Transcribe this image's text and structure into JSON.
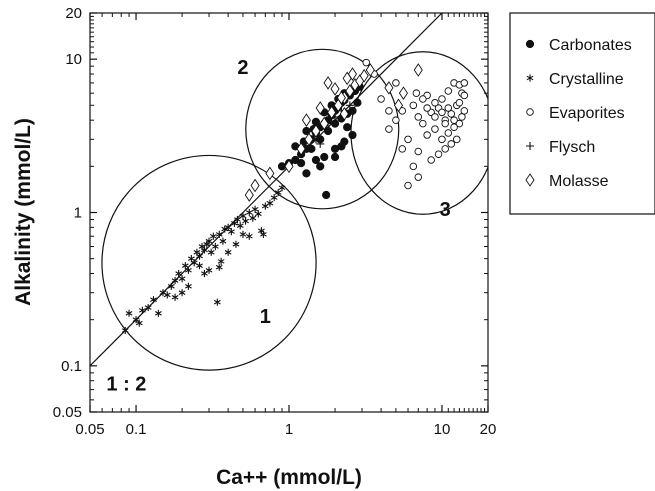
{
  "chart_data": {
    "type": "scatter",
    "title": "",
    "xlabel": "Ca++ (mmol/L)",
    "ylabel": "Alkalinity (mmol/L)",
    "xscale": "log",
    "yscale": "log",
    "xlim": [
      0.05,
      20
    ],
    "ylim": [
      0.05,
      20
    ],
    "x_ticks": [
      0.05,
      0.1,
      1,
      10,
      20
    ],
    "x_tick_labels": [
      "0.05",
      "0.1",
      "1",
      "10",
      "20"
    ],
    "y_ticks": [
      0.05,
      0.1,
      1,
      10,
      20
    ],
    "y_tick_labels": [
      "0.05",
      "0.1",
      "1",
      "10",
      "20"
    ],
    "grid": false,
    "legend_position": "outside-right",
    "line_label": "1 : 2",
    "reference_line": {
      "slope": 2,
      "label": "1 : 2"
    },
    "groups": [
      {
        "label": "1",
        "center": [
          0.3,
          0.47
        ],
        "rx_decades": 0.7,
        "ry_decades": 0.7
      },
      {
        "label": "2",
        "center": [
          1.65,
          3.5
        ],
        "rx_decades": 0.5,
        "ry_decades": 0.52
      },
      {
        "label": "3",
        "center": [
          7.5,
          3.3
        ],
        "rx_decades": 0.47,
        "ry_decades": 0.53
      }
    ],
    "group_label_positions": [
      [
        0.7,
        0.19
      ],
      [
        0.5,
        8.0
      ],
      [
        10.5,
        0.95
      ]
    ],
    "series": [
      {
        "name": "Carbonates",
        "marker": "filled-circle",
        "points": [
          [
            0.9,
            2.0
          ],
          [
            1.0,
            2.1
          ],
          [
            1.1,
            2.2
          ],
          [
            1.2,
            2.4
          ],
          [
            1.3,
            2.6
          ],
          [
            1.4,
            3.0
          ],
          [
            1.5,
            3.3
          ],
          [
            1.6,
            3.6
          ],
          [
            1.7,
            3.8
          ],
          [
            1.8,
            4.0
          ],
          [
            1.9,
            4.3
          ],
          [
            2.0,
            4.6
          ],
          [
            2.1,
            4.9
          ],
          [
            2.2,
            5.2
          ],
          [
            2.3,
            5.4
          ],
          [
            2.5,
            5.8
          ],
          [
            2.7,
            6.2
          ],
          [
            2.9,
            6.6
          ],
          [
            1.2,
            2.1
          ],
          [
            1.4,
            2.6
          ],
          [
            1.6,
            3.0
          ],
          [
            1.8,
            3.4
          ],
          [
            2.0,
            3.8
          ],
          [
            2.2,
            4.1
          ],
          [
            2.4,
            4.4
          ],
          [
            1.5,
            2.2
          ],
          [
            1.7,
            2.3
          ],
          [
            2.0,
            2.6
          ],
          [
            2.3,
            2.9
          ],
          [
            2.6,
            3.2
          ],
          [
            1.3,
            3.4
          ],
          [
            1.5,
            3.9
          ],
          [
            1.7,
            4.5
          ],
          [
            1.9,
            5.0
          ],
          [
            2.1,
            5.5
          ],
          [
            2.3,
            6.0
          ],
          [
            1.1,
            2.7
          ],
          [
            1.25,
            2.9
          ],
          [
            1.45,
            3.5
          ],
          [
            2.4,
            3.6
          ],
          [
            2.6,
            4.6
          ],
          [
            2.8,
            5.2
          ],
          [
            1.3,
            1.8
          ],
          [
            1.6,
            2.0
          ],
          [
            2.0,
            2.3
          ],
          [
            2.2,
            2.7
          ],
          [
            1.75,
            1.3
          ]
        ]
      },
      {
        "name": "Crystalline",
        "marker": "asterisk",
        "points": [
          [
            0.085,
            0.17
          ],
          [
            0.09,
            0.22
          ],
          [
            0.1,
            0.2
          ],
          [
            0.11,
            0.23
          ],
          [
            0.13,
            0.27
          ],
          [
            0.15,
            0.3
          ],
          [
            0.16,
            0.29
          ],
          [
            0.17,
            0.33
          ],
          [
            0.18,
            0.36
          ],
          [
            0.19,
            0.4
          ],
          [
            0.2,
            0.37
          ],
          [
            0.21,
            0.45
          ],
          [
            0.22,
            0.42
          ],
          [
            0.23,
            0.5
          ],
          [
            0.24,
            0.47
          ],
          [
            0.25,
            0.55
          ],
          [
            0.26,
            0.52
          ],
          [
            0.27,
            0.6
          ],
          [
            0.28,
            0.57
          ],
          [
            0.29,
            0.62
          ],
          [
            0.3,
            0.65
          ],
          [
            0.31,
            0.55
          ],
          [
            0.32,
            0.7
          ],
          [
            0.33,
            0.6
          ],
          [
            0.35,
            0.72
          ],
          [
            0.37,
            0.65
          ],
          [
            0.38,
            0.78
          ],
          [
            0.4,
            0.8
          ],
          [
            0.42,
            0.75
          ],
          [
            0.44,
            0.85
          ],
          [
            0.46,
            0.9
          ],
          [
            0.48,
            0.82
          ],
          [
            0.5,
            0.95
          ],
          [
            0.52,
            0.88
          ],
          [
            0.55,
            1.0
          ],
          [
            0.58,
            0.92
          ],
          [
            0.6,
            1.05
          ],
          [
            0.63,
            0.98
          ],
          [
            0.66,
            0.76
          ],
          [
            0.68,
            0.72
          ],
          [
            0.7,
            1.1
          ],
          [
            0.45,
            0.62
          ],
          [
            0.4,
            0.55
          ],
          [
            0.36,
            0.48
          ],
          [
            0.3,
            0.42
          ],
          [
            0.35,
            0.44
          ],
          [
            0.28,
            0.4
          ],
          [
            0.22,
            0.33
          ],
          [
            0.2,
            0.3
          ],
          [
            0.18,
            0.28
          ],
          [
            0.14,
            0.22
          ],
          [
            0.12,
            0.24
          ],
          [
            0.105,
            0.19
          ],
          [
            0.55,
            0.7
          ],
          [
            0.5,
            0.72
          ],
          [
            0.75,
            1.15
          ],
          [
            0.8,
            1.25
          ],
          [
            0.85,
            1.35
          ],
          [
            0.9,
            1.45
          ],
          [
            0.34,
            0.26
          ],
          [
            0.26,
            0.45
          ]
        ]
      },
      {
        "name": "Evaporites",
        "marker": "open-circle",
        "points": [
          [
            4.0,
            5.5
          ],
          [
            4.5,
            3.5
          ],
          [
            5.0,
            4.0
          ],
          [
            5.5,
            4.6
          ],
          [
            6.0,
            3.0
          ],
          [
            6.5,
            5.0
          ],
          [
            7.0,
            4.2
          ],
          [
            7.5,
            3.8
          ],
          [
            8.0,
            5.8
          ],
          [
            8.5,
            4.5
          ],
          [
            9.0,
            3.5
          ],
          [
            9.5,
            4.8
          ],
          [
            10.0,
            5.5
          ],
          [
            10.5,
            4.0
          ],
          [
            11.0,
            6.2
          ],
          [
            11.5,
            4.4
          ],
          [
            12.0,
            7.0
          ],
          [
            12.5,
            5.0
          ],
          [
            13.0,
            3.8
          ],
          [
            13.5,
            6.0
          ],
          [
            14.0,
            4.6
          ],
          [
            10.0,
            3.0
          ],
          [
            11.0,
            3.3
          ],
          [
            12.0,
            3.6
          ],
          [
            13.0,
            5.2
          ],
          [
            14.0,
            5.8
          ],
          [
            9.0,
            4.2
          ],
          [
            8.0,
            3.2
          ],
          [
            7.0,
            2.5
          ],
          [
            6.5,
            2.0
          ],
          [
            8.5,
            2.2
          ],
          [
            9.5,
            2.4
          ],
          [
            10.5,
            2.6
          ],
          [
            11.5,
            2.8
          ],
          [
            12.5,
            3.0
          ],
          [
            13.5,
            4.2
          ],
          [
            6.0,
            1.5
          ],
          [
            7.0,
            1.7
          ],
          [
            5.5,
            2.6
          ],
          [
            4.5,
            4.6
          ],
          [
            3.2,
            9.5
          ],
          [
            3.6,
            8.0
          ],
          [
            5.0,
            7.0
          ],
          [
            6.8,
            6.0
          ],
          [
            12.0,
            4.0
          ],
          [
            11.0,
            4.8
          ],
          [
            10.0,
            4.5
          ],
          [
            9.0,
            5.2
          ],
          [
            8.0,
            4.8
          ],
          [
            7.5,
            5.5
          ],
          [
            13.0,
            6.8
          ],
          [
            14.0,
            7.0
          ],
          [
            10.5,
            3.8
          ]
        ]
      },
      {
        "name": "Flysch",
        "marker": "plus",
        "points": [
          [
            1.5,
            3.0
          ],
          [
            1.8,
            3.8
          ],
          [
            2.0,
            4.2
          ],
          [
            2.2,
            4.6
          ],
          [
            2.5,
            5.0
          ],
          [
            1.6,
            2.8
          ]
        ]
      },
      {
        "name": "Molasse",
        "marker": "open-diamond",
        "points": [
          [
            0.55,
            1.3
          ],
          [
            0.6,
            1.5
          ],
          [
            0.75,
            1.8
          ],
          [
            1.0,
            2.0
          ],
          [
            1.2,
            2.6
          ],
          [
            1.35,
            3.0
          ],
          [
            1.5,
            3.4
          ],
          [
            1.7,
            3.8
          ],
          [
            1.9,
            4.5
          ],
          [
            2.1,
            5.0
          ],
          [
            2.3,
            5.6
          ],
          [
            2.5,
            6.2
          ],
          [
            2.7,
            6.8
          ],
          [
            2.9,
            7.2
          ],
          [
            3.1,
            7.8
          ],
          [
            2.4,
            7.5
          ],
          [
            1.8,
            7.0
          ],
          [
            2.0,
            6.4
          ],
          [
            2.2,
            5.6
          ],
          [
            1.6,
            4.8
          ],
          [
            3.4,
            8.5
          ],
          [
            4.5,
            6.5
          ],
          [
            5.6,
            6.0
          ],
          [
            7.0,
            8.5
          ],
          [
            5.2,
            5.0
          ],
          [
            2.6,
            8.0
          ],
          [
            2.3,
            4.4
          ],
          [
            1.3,
            4.0
          ]
        ]
      }
    ]
  }
}
